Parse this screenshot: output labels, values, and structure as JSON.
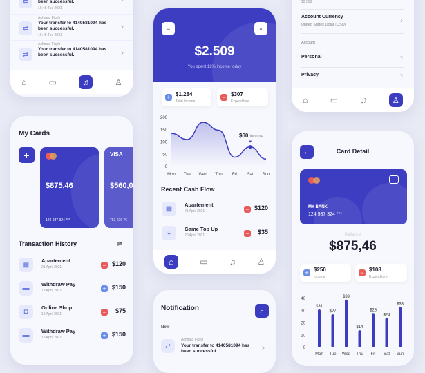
{
  "colors": {
    "primary": "#3c3cc0",
    "minus": "#e85b5b",
    "plus": "#6a8ee8",
    "background": "#e8eaf5"
  },
  "notif_top": {
    "items": [
      {
        "sender": "",
        "message": "Your transfer to 4140581094 has been successful.",
        "time": "16:48 Tue 2021"
      },
      {
        "sender": "Achmad Fiqrih",
        "message": "Your transfer to 4140581094 has been successful.",
        "time": "16:48 Tue 2021"
      },
      {
        "sender": "Achmad Fiqrih",
        "message": "Your transfer to 4140581094 has been successful.",
        "time": ""
      }
    ]
  },
  "cards": {
    "title": "My Cards",
    "add": "+",
    "items": [
      {
        "balance": "$875,46",
        "number": "124 987 324 ***",
        "brand": ""
      },
      {
        "balance": "$560,0",
        "number": "753 926 76",
        "brand": "VISA"
      }
    ]
  },
  "history": {
    "title": "Transaction History",
    "items": [
      {
        "name": "Apartement",
        "date": "21 April 2021",
        "amount": "$120",
        "type": "minus",
        "icon": "building-icon"
      },
      {
        "name": "Withdraw Pay",
        "date": "18 April 2021",
        "amount": "$150",
        "type": "plus",
        "icon": "card-icon"
      },
      {
        "name": "Online Shop",
        "date": "19 April 2021",
        "amount": "$75",
        "type": "minus",
        "icon": "bag-icon"
      },
      {
        "name": "Withdraw Pay",
        "date": "18 April 2021",
        "amount": "$150",
        "type": "plus",
        "icon": "card-icon"
      }
    ]
  },
  "home": {
    "balance": "$2.509",
    "subtitle": "You spent 12% income today",
    "income": "$1.284",
    "income_label": "Total Income",
    "expense": "$307",
    "expense_label": "Expenditure",
    "annotation_value": "$60",
    "annotation_label": "income",
    "recent_title": "Recent Cash Flow",
    "recent": [
      {
        "name": "Apartement",
        "date": "21 April 2021",
        "amount": "$120",
        "type": "minus",
        "icon": "building-icon"
      },
      {
        "name": "Game Top Up",
        "date": "20 April 2021",
        "amount": "$35",
        "type": "minus",
        "icon": "gamepad-icon"
      }
    ]
  },
  "notification": {
    "title": "Notification",
    "section": "New",
    "item": {
      "sender": "Achmad Fiqrih",
      "message": "Your transfer to 4140581094 has been successful."
    }
  },
  "settings": {
    "top_value": "$2.509",
    "currency_title": "Account Currency",
    "currency_value": "United States Dolar (USD)",
    "section": "Account",
    "items": [
      "Personal",
      "Privacy"
    ]
  },
  "card_detail": {
    "title": "Card Detail",
    "bank": "MY BANK",
    "number": "124 987 324 ***",
    "balance_label": "Ballance",
    "balance": "$875,46",
    "income": "$250",
    "income_label": "Income",
    "expense": "$108",
    "expense_label": "Expenditure"
  },
  "chart_data": [
    {
      "type": "area",
      "categories": [
        "Mon",
        "Tue",
        "Wed",
        "Thu",
        "Fri",
        "Sat",
        "Sun"
      ],
      "values": [
        135,
        110,
        180,
        148,
        38,
        80,
        30
      ],
      "ylim": [
        0,
        200
      ],
      "yticks": [
        0,
        50,
        100,
        150,
        200
      ],
      "highlight": "Sat"
    },
    {
      "type": "bar",
      "categories": [
        "Mon",
        "Tue",
        "Wed",
        "Thu",
        "Fri",
        "Sat",
        "Sun"
      ],
      "values": [
        31,
        27,
        39,
        14,
        28,
        24,
        33
      ],
      "labels": [
        "$31",
        "$27",
        "$39",
        "$14",
        "$28",
        "$24",
        "$33"
      ],
      "ylim": [
        0,
        40
      ],
      "yticks": [
        0,
        10,
        20,
        30,
        40
      ]
    }
  ]
}
